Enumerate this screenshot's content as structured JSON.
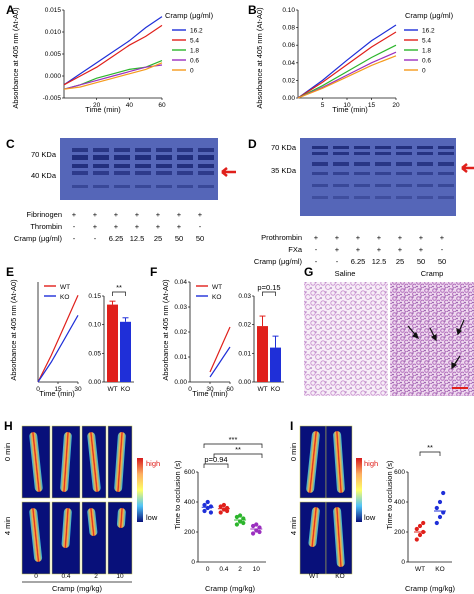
{
  "panels": {
    "A": {
      "label": "A",
      "ylabel": "Absorbance at 405 nm (At-A0)",
      "xlabel": "Time (min)",
      "yticks": [
        "0.015",
        "0.010",
        "0.005",
        "0.000",
        "-0.005"
      ],
      "xticks": [
        "20",
        "40",
        "60"
      ],
      "legend_title": "Cramp (μg/ml)"
    },
    "B": {
      "label": "B",
      "ylabel": "Absorbance at 405 nm (At-A0)",
      "xlabel": "Time (min)",
      "yticks": [
        "0.10",
        "0.08",
        "0.06",
        "0.04",
        "0.02",
        "0.00"
      ],
      "xticks": [
        "5",
        "10",
        "15",
        "20"
      ],
      "legend_title": "Cramp (μg/ml)"
    },
    "C": {
      "label": "C",
      "mw": [
        "70 KDa",
        "40 KDa"
      ],
      "rows": [
        {
          "name": "Fibrinogen",
          "cells": [
            "+",
            "+",
            "+",
            "+",
            "+",
            "+"
          ]
        },
        {
          "name": "Thrombin",
          "cells": [
            "-",
            "+",
            "+",
            "+",
            "+",
            "+"
          ]
        },
        {
          "name": "Cramp (μg/ml)",
          "cells": [
            "-",
            "-",
            "6.25",
            "12.5",
            "25",
            "50"
          ]
        }
      ],
      "extra_col": [
        "+",
        "-",
        "50"
      ]
    },
    "D": {
      "label": "D",
      "mw": [
        "70 KDa",
        "35 KDa"
      ],
      "rows": [
        {
          "name": "Prothrombin",
          "cells": [
            "+",
            "+",
            "+",
            "+",
            "+",
            "+"
          ]
        },
        {
          "name": "FXa",
          "cells": [
            "-",
            "+",
            "+",
            "+",
            "+",
            "+"
          ]
        },
        {
          "name": "Cramp (μg/ml)",
          "cells": [
            "-",
            "-",
            "6.25",
            "12.5",
            "25",
            "50"
          ]
        }
      ],
      "extra_col": [
        "+",
        "-",
        "50"
      ]
    },
    "E": {
      "label": "E",
      "ylabel": "Absorbance at 405 nm (At-A0)",
      "xlabel": "Time (min)",
      "xticks": [
        "0",
        "15",
        "30"
      ],
      "yticks_bar": [
        "0.15",
        "0.10",
        "0.05",
        "0.00"
      ],
      "bar_cats": [
        "WT",
        "KO"
      ],
      "sig": "**"
    },
    "F": {
      "label": "F",
      "ylabel": "Absorbance at 405 nm (At-A0)",
      "xlabel": "Time (min)",
      "yticks": [
        "0.04",
        "0.03",
        "0.02",
        "0.01",
        "0.00"
      ],
      "xticks": [
        "0",
        "30",
        "60"
      ],
      "yticks_bar": [
        "0.03",
        "0.02",
        "0.01",
        "0.00"
      ],
      "bar_cats": [
        "WT",
        "KO"
      ],
      "sig": "p=0.15"
    },
    "G": {
      "label": "G",
      "titles": [
        "Saline",
        "Cramp"
      ]
    },
    "H": {
      "label": "H",
      "row_labels": [
        "0 min",
        "4 min"
      ],
      "cols": [
        "0",
        "0.4",
        "2",
        "10"
      ],
      "xlabel": "Cramp (mg/kg)",
      "scale_high": "high",
      "scale_low": "low",
      "ylabel": "Time to occlusion (s)",
      "yticks": [
        "600",
        "400",
        "200",
        "0"
      ],
      "xticks": [
        "0",
        "0.4",
        "2",
        "10"
      ],
      "sig": [
        "***",
        "**",
        "p=0.94"
      ]
    },
    "I": {
      "label": "I",
      "row_labels": [
        "0 min",
        "4 min"
      ],
      "cols": [
        "WT",
        "KO"
      ],
      "scale_high": "high",
      "scale_low": "low",
      "ylabel": "Time to occlusion (s)",
      "yticks": [
        "600",
        "400",
        "200",
        "0"
      ],
      "xticks": [
        "WT",
        "KO"
      ],
      "xlabel": "Cramp (mg/kg)",
      "sig": "**"
    }
  },
  "colors": {
    "blue": "#1f2fd8",
    "red": "#e0201b",
    "green": "#2cb52c",
    "purple": "#9b2fbf",
    "orange": "#f59a1c",
    "gel": "#4e5fb4",
    "gel_band": "#1e2a78",
    "arrow": "#e0201b"
  },
  "chart_data": [
    {
      "panel": "A",
      "type": "line",
      "title": "",
      "xlabel": "Time (min)",
      "ylabel": "Absorbance at 405 nm (At-A0)",
      "xlim": [
        0,
        60
      ],
      "ylim": [
        -0.005,
        0.015
      ],
      "legend": "top-right",
      "series": [
        {
          "name": "16.2",
          "color": "#1f2fd8",
          "x": [
            0,
            10,
            20,
            30,
            40,
            50,
            60
          ],
          "y": [
            -0.002,
            0.0005,
            0.003,
            0.0055,
            0.008,
            0.011,
            0.0135
          ]
        },
        {
          "name": "5.4",
          "color": "#e0201b",
          "x": [
            0,
            10,
            20,
            30,
            40,
            50,
            60
          ],
          "y": [
            -0.002,
            0.0,
            0.002,
            0.0045,
            0.007,
            0.009,
            0.0115
          ]
        },
        {
          "name": "1.8",
          "color": "#2cb52c",
          "x": [
            0,
            10,
            20,
            30,
            40,
            50,
            60
          ],
          "y": [
            -0.003,
            -0.002,
            -0.0005,
            0.0005,
            0.0015,
            0.002,
            0.0035
          ]
        },
        {
          "name": "0.6",
          "color": "#9b2fbf",
          "x": [
            0,
            10,
            20,
            30,
            40,
            50,
            60
          ],
          "y": [
            -0.003,
            -0.002,
            -0.001,
            0.0,
            0.001,
            0.002,
            0.0025
          ]
        },
        {
          "name": "0",
          "color": "#f59a1c",
          "x": [
            0,
            10,
            20,
            30,
            40,
            50,
            60
          ],
          "y": [
            -0.003,
            -0.0025,
            -0.0015,
            -0.0005,
            0.0005,
            0.0015,
            0.003
          ]
        }
      ]
    },
    {
      "panel": "B",
      "type": "line",
      "title": "",
      "xlabel": "Time (min)",
      "ylabel": "Absorbance at 405 nm (At-A0)",
      "xlim": [
        0,
        20
      ],
      "ylim": [
        0,
        0.1
      ],
      "legend": "top-right",
      "series": [
        {
          "name": "16.2",
          "color": "#1f2fd8",
          "x": [
            0,
            5,
            10,
            15,
            20
          ],
          "y": [
            0.0,
            0.02,
            0.043,
            0.065,
            0.083
          ]
        },
        {
          "name": "5.4",
          "color": "#e0201b",
          "x": [
            0,
            5,
            10,
            15,
            20
          ],
          "y": [
            0.0,
            0.018,
            0.038,
            0.058,
            0.075
          ]
        },
        {
          "name": "1.8",
          "color": "#2cb52c",
          "x": [
            0,
            5,
            10,
            15,
            20
          ],
          "y": [
            0.0,
            0.014,
            0.03,
            0.046,
            0.06
          ]
        },
        {
          "name": "0.6",
          "color": "#9b2fbf",
          "x": [
            0,
            5,
            10,
            15,
            20
          ],
          "y": [
            0.0,
            0.012,
            0.026,
            0.04,
            0.052
          ]
        },
        {
          "name": "0",
          "color": "#f59a1c",
          "x": [
            0,
            5,
            10,
            15,
            20
          ],
          "y": [
            0.0,
            0.011,
            0.024,
            0.037,
            0.048
          ]
        }
      ]
    },
    {
      "panel": "E-line",
      "type": "line",
      "xlabel": "Time (min)",
      "ylabel": "Absorbance at 405 nm (At-A0)",
      "xlim": [
        0,
        30
      ],
      "ylim": [
        0,
        0.3
      ],
      "legend": "top-left",
      "series": [
        {
          "name": "WT",
          "color": "#e0201b",
          "x": [
            0,
            10,
            20,
            30
          ],
          "y": [
            0.0,
            0.08,
            0.17,
            0.26
          ]
        },
        {
          "name": "KO",
          "color": "#1f2fd8",
          "x": [
            0,
            10,
            20,
            30
          ],
          "y": [
            0.0,
            0.06,
            0.13,
            0.2
          ]
        }
      ]
    },
    {
      "panel": "E-bar",
      "type": "bar",
      "categories": [
        "WT",
        "KO"
      ],
      "values": [
        0.135,
        0.105
      ],
      "errors": [
        0.006,
        0.007
      ],
      "colors": [
        "#e0201b",
        "#1f2fd8"
      ],
      "ylim": [
        0,
        0.15
      ]
    },
    {
      "panel": "F-line",
      "type": "line",
      "xlabel": "Time (min)",
      "ylabel": "Absorbance at 405 nm (At-A0)",
      "xlim": [
        0,
        60
      ],
      "ylim": [
        0,
        0.04
      ],
      "legend": "top-left",
      "series": [
        {
          "name": "WT",
          "color": "#e0201b",
          "x": [
            30,
            40,
            50,
            60
          ],
          "y": [
            0.004,
            0.01,
            0.016,
            0.022
          ]
        },
        {
          "name": "KO",
          "color": "#1f2fd8",
          "x": [
            30,
            40,
            50,
            60
          ],
          "y": [
            0.002,
            0.006,
            0.01,
            0.014
          ]
        }
      ]
    },
    {
      "panel": "F-bar",
      "type": "bar",
      "categories": [
        "WT",
        "KO"
      ],
      "values": [
        0.0195,
        0.012
      ],
      "errors": [
        0.0035,
        0.004
      ],
      "colors": [
        "#e0201b",
        "#1f2fd8"
      ],
      "ylim": [
        0,
        0.03
      ]
    },
    {
      "panel": "H-scatter",
      "type": "scatter",
      "categories": [
        "0",
        "0.4",
        "2",
        "10"
      ],
      "xlabel": "Cramp (mg/kg)",
      "ylabel": "Time to occlusion (s)",
      "ylim": [
        0,
        600
      ],
      "colors": [
        "#1f2fd8",
        "#e0201b",
        "#2cb52c",
        "#9b2fbf"
      ],
      "points": [
        [
          340,
          360,
          370,
          380,
          400,
          330
        ],
        [
          330,
          350,
          360,
          370,
          380,
          340
        ],
        [
          250,
          270,
          290,
          300,
          310,
          260
        ],
        [
          190,
          210,
          230,
          240,
          250,
          200
        ]
      ],
      "means": [
        365,
        355,
        280,
        220
      ]
    },
    {
      "panel": "I-scatter",
      "type": "scatter",
      "categories": [
        "WT",
        "KO"
      ],
      "xlabel": "Cramp (mg/kg)",
      "ylabel": "Time to occlusion (s)",
      "ylim": [
        0,
        600
      ],
      "colors": [
        "#e0201b",
        "#1f2fd8"
      ],
      "points": [
        [
          150,
          180,
          200,
          220,
          240,
          260
        ],
        [
          260,
          300,
          330,
          360,
          400,
          460
        ]
      ],
      "means": [
        200,
        340
      ]
    }
  ]
}
